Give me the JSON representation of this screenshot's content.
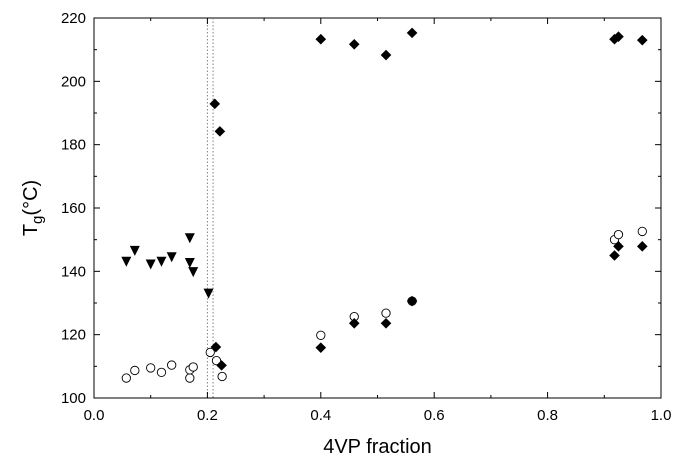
{
  "chart_data": {
    "type": "scatter",
    "xlabel": "4VP fraction",
    "ylabel": {
      "main": "T",
      "sub": "g",
      "unit": "(°C)"
    },
    "xlim": [
      0.0,
      1.0
    ],
    "ylim": [
      100,
      220
    ],
    "x_ticks": [
      "0.0",
      "0.2",
      "0.4",
      "0.6",
      "0.8",
      "1.0"
    ],
    "y_ticks": [
      "100",
      "120",
      "140",
      "160",
      "180",
      "200",
      "220"
    ],
    "grid": false,
    "legend": "none",
    "reference_lines_x": [
      0.2,
      0.21
    ],
    "series": [
      {
        "marker": "triangle-down-filled",
        "points": [
          [
            0.057,
            143.2
          ],
          [
            0.072,
            146.6
          ],
          [
            0.1,
            142.3
          ],
          [
            0.119,
            143.2
          ],
          [
            0.137,
            144.6
          ],
          [
            0.169,
            150.6
          ],
          [
            0.169,
            142.8
          ],
          [
            0.175,
            139.9
          ],
          [
            0.202,
            133.1
          ]
        ]
      },
      {
        "marker": "circle-open",
        "points": [
          [
            0.057,
            106.3
          ],
          [
            0.072,
            108.7
          ],
          [
            0.1,
            109.5
          ],
          [
            0.119,
            108.1
          ],
          [
            0.137,
            110.4
          ],
          [
            0.169,
            106.3
          ],
          [
            0.169,
            108.9
          ],
          [
            0.175,
            109.8
          ],
          [
            0.205,
            114.4
          ],
          [
            0.216,
            111.8
          ],
          [
            0.226,
            106.8
          ],
          [
            0.4,
            119.8
          ],
          [
            0.459,
            125.7
          ],
          [
            0.515,
            126.8
          ],
          [
            0.561,
            130.6
          ],
          [
            0.918,
            150.0
          ],
          [
            0.925,
            151.6
          ],
          [
            0.967,
            152.6
          ]
        ]
      },
      {
        "marker": "diamond-filled",
        "points": [
          [
            0.213,
            192.9
          ],
          [
            0.222,
            184.2
          ],
          [
            0.4,
            213.3
          ],
          [
            0.459,
            211.7
          ],
          [
            0.515,
            208.3
          ],
          [
            0.561,
            215.3
          ],
          [
            0.918,
            213.3
          ],
          [
            0.925,
            214.1
          ],
          [
            0.967,
            213.0
          ],
          [
            0.215,
            116.1
          ],
          [
            0.225,
            110.3
          ],
          [
            0.4,
            115.9
          ],
          [
            0.459,
            123.6
          ],
          [
            0.515,
            123.6
          ],
          [
            0.561,
            130.6
          ],
          [
            0.918,
            145.0
          ],
          [
            0.925,
            147.9
          ],
          [
            0.967,
            147.9
          ]
        ]
      }
    ],
    "colors": {
      "axis": "#000000",
      "marker": "#000000",
      "reference_line": "#808080"
    }
  }
}
